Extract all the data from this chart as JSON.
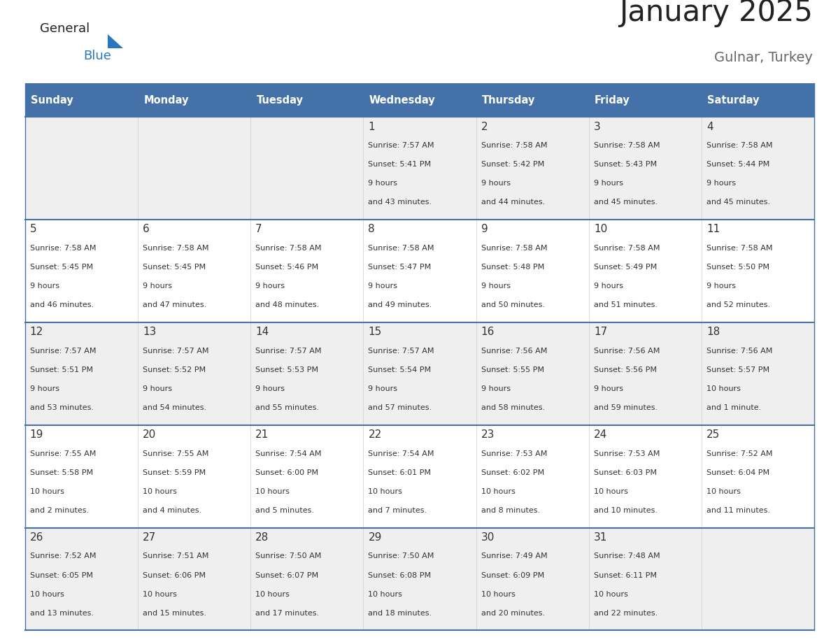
{
  "title": "January 2025",
  "subtitle": "Gulnar, Turkey",
  "days_of_week": [
    "Sunday",
    "Monday",
    "Tuesday",
    "Wednesday",
    "Thursday",
    "Friday",
    "Saturday"
  ],
  "header_bg": "#4472a8",
  "header_text": "#ffffff",
  "cell_bg_light": "#efefef",
  "cell_bg_white": "#ffffff",
  "day_num_color": "#333333",
  "info_color": "#333333",
  "line_color": "#4472a8",
  "title_color": "#222222",
  "subtitle_color": "#666666",
  "logo_general_color": "#222222",
  "logo_blue_color": "#2878be",
  "calendar_data": [
    [
      {
        "day": null
      },
      {
        "day": null
      },
      {
        "day": null
      },
      {
        "day": 1,
        "sunrise": "7:57 AM",
        "sunset": "5:41 PM",
        "daylight": "9 hours\nand 43 minutes."
      },
      {
        "day": 2,
        "sunrise": "7:58 AM",
        "sunset": "5:42 PM",
        "daylight": "9 hours\nand 44 minutes."
      },
      {
        "day": 3,
        "sunrise": "7:58 AM",
        "sunset": "5:43 PM",
        "daylight": "9 hours\nand 45 minutes."
      },
      {
        "day": 4,
        "sunrise": "7:58 AM",
        "sunset": "5:44 PM",
        "daylight": "9 hours\nand 45 minutes."
      }
    ],
    [
      {
        "day": 5,
        "sunrise": "7:58 AM",
        "sunset": "5:45 PM",
        "daylight": "9 hours\nand 46 minutes."
      },
      {
        "day": 6,
        "sunrise": "7:58 AM",
        "sunset": "5:45 PM",
        "daylight": "9 hours\nand 47 minutes."
      },
      {
        "day": 7,
        "sunrise": "7:58 AM",
        "sunset": "5:46 PM",
        "daylight": "9 hours\nand 48 minutes."
      },
      {
        "day": 8,
        "sunrise": "7:58 AM",
        "sunset": "5:47 PM",
        "daylight": "9 hours\nand 49 minutes."
      },
      {
        "day": 9,
        "sunrise": "7:58 AM",
        "sunset": "5:48 PM",
        "daylight": "9 hours\nand 50 minutes."
      },
      {
        "day": 10,
        "sunrise": "7:58 AM",
        "sunset": "5:49 PM",
        "daylight": "9 hours\nand 51 minutes."
      },
      {
        "day": 11,
        "sunrise": "7:58 AM",
        "sunset": "5:50 PM",
        "daylight": "9 hours\nand 52 minutes."
      }
    ],
    [
      {
        "day": 12,
        "sunrise": "7:57 AM",
        "sunset": "5:51 PM",
        "daylight": "9 hours\nand 53 minutes."
      },
      {
        "day": 13,
        "sunrise": "7:57 AM",
        "sunset": "5:52 PM",
        "daylight": "9 hours\nand 54 minutes."
      },
      {
        "day": 14,
        "sunrise": "7:57 AM",
        "sunset": "5:53 PM",
        "daylight": "9 hours\nand 55 minutes."
      },
      {
        "day": 15,
        "sunrise": "7:57 AM",
        "sunset": "5:54 PM",
        "daylight": "9 hours\nand 57 minutes."
      },
      {
        "day": 16,
        "sunrise": "7:56 AM",
        "sunset": "5:55 PM",
        "daylight": "9 hours\nand 58 minutes."
      },
      {
        "day": 17,
        "sunrise": "7:56 AM",
        "sunset": "5:56 PM",
        "daylight": "9 hours\nand 59 minutes."
      },
      {
        "day": 18,
        "sunrise": "7:56 AM",
        "sunset": "5:57 PM",
        "daylight": "10 hours\nand 1 minute."
      }
    ],
    [
      {
        "day": 19,
        "sunrise": "7:55 AM",
        "sunset": "5:58 PM",
        "daylight": "10 hours\nand 2 minutes."
      },
      {
        "day": 20,
        "sunrise": "7:55 AM",
        "sunset": "5:59 PM",
        "daylight": "10 hours\nand 4 minutes."
      },
      {
        "day": 21,
        "sunrise": "7:54 AM",
        "sunset": "6:00 PM",
        "daylight": "10 hours\nand 5 minutes."
      },
      {
        "day": 22,
        "sunrise": "7:54 AM",
        "sunset": "6:01 PM",
        "daylight": "10 hours\nand 7 minutes."
      },
      {
        "day": 23,
        "sunrise": "7:53 AM",
        "sunset": "6:02 PM",
        "daylight": "10 hours\nand 8 minutes."
      },
      {
        "day": 24,
        "sunrise": "7:53 AM",
        "sunset": "6:03 PM",
        "daylight": "10 hours\nand 10 minutes."
      },
      {
        "day": 25,
        "sunrise": "7:52 AM",
        "sunset": "6:04 PM",
        "daylight": "10 hours\nand 11 minutes."
      }
    ],
    [
      {
        "day": 26,
        "sunrise": "7:52 AM",
        "sunset": "6:05 PM",
        "daylight": "10 hours\nand 13 minutes."
      },
      {
        "day": 27,
        "sunrise": "7:51 AM",
        "sunset": "6:06 PM",
        "daylight": "10 hours\nand 15 minutes."
      },
      {
        "day": 28,
        "sunrise": "7:50 AM",
        "sunset": "6:07 PM",
        "daylight": "10 hours\nand 17 minutes."
      },
      {
        "day": 29,
        "sunrise": "7:50 AM",
        "sunset": "6:08 PM",
        "daylight": "10 hours\nand 18 minutes."
      },
      {
        "day": 30,
        "sunrise": "7:49 AM",
        "sunset": "6:09 PM",
        "daylight": "10 hours\nand 20 minutes."
      },
      {
        "day": 31,
        "sunrise": "7:48 AM",
        "sunset": "6:11 PM",
        "daylight": "10 hours\nand 22 minutes."
      },
      {
        "day": null
      }
    ]
  ]
}
